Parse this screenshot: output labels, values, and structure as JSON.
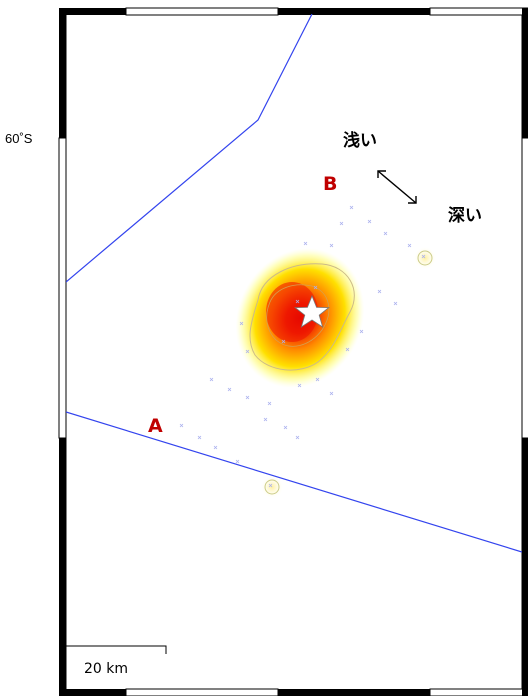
{
  "map": {
    "latitude_label": "60˚S",
    "scale_bar_label": "20 km",
    "legend": {
      "shallow_label": "浅い",
      "deep_label": "深い",
      "arrow_icon": "double-arrow-icon"
    },
    "section_line": {
      "start_label": "A",
      "end_label": "B"
    },
    "colors": {
      "boundary_line": "#3344ee",
      "endpoint_label": "#c00000",
      "mainshock_star": "#ffffff",
      "heat_peak": "#dd0000",
      "heat_mid": "#ff8800",
      "heat_low": "#ffee00"
    }
  }
}
